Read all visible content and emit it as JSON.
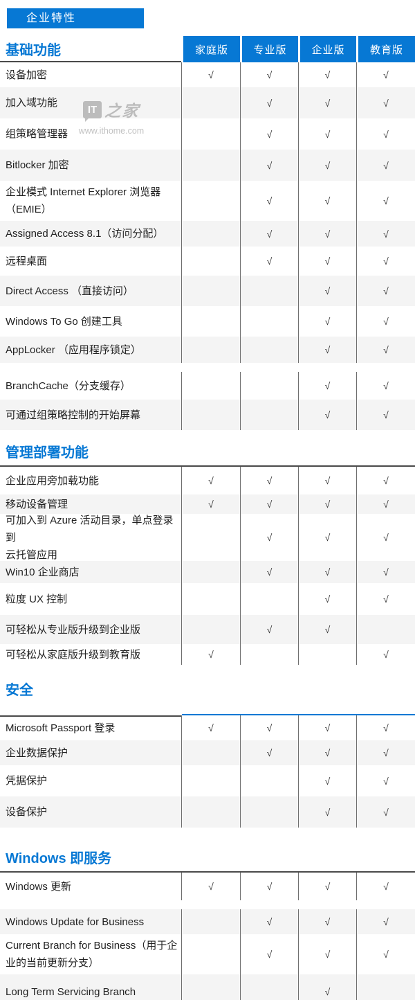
{
  "tag_button": {
    "label": "企业特性"
  },
  "editions": [
    "家庭版",
    "专业版",
    "企业版",
    "教育版"
  ],
  "checkmark_symbol": "√",
  "watermark": {
    "logo": "IT",
    "brand": "之家",
    "url": "www.ithome.com"
  },
  "colors": {
    "accent_blue": "#0778d4",
    "row_alt_bg": "#f4f4f4",
    "border_dark": "#4a4a4a",
    "grid_line": "#6e6e6e"
  },
  "sections": [
    {
      "heading": "基础功能",
      "show_edition_headers": true,
      "top_border": "headers",
      "segments": [
        {
          "rows": [
            {
              "lines": [
                "设备加密"
              ],
              "checks": [
                1,
                1,
                1,
                1
              ],
              "h": 36
            },
            {
              "lines": [
                "加入域功能"
              ],
              "checks": [
                0,
                1,
                1,
                1
              ],
              "h": 45
            },
            {
              "lines": [
                "组策略管理器"
              ],
              "checks": [
                0,
                1,
                1,
                1
              ],
              "h": 45
            },
            {
              "lines": [
                "Bitlocker 加密"
              ],
              "checks": [
                0,
                1,
                1,
                1
              ],
              "h": 45
            },
            {
              "lines": [
                "企业模式 Internet Explorer 浏览器",
                "（EMIE）"
              ],
              "checks": [
                0,
                1,
                1,
                1
              ],
              "h": 58
            },
            {
              "lines": [
                "Assigned Access 8.1（访问分配）"
              ],
              "checks": [
                0,
                1,
                1,
                1
              ],
              "h": 37
            },
            {
              "lines": [
                "远程桌面"
              ],
              "checks": [
                0,
                1,
                1,
                1
              ],
              "h": 42
            },
            {
              "lines": [
                "Direct Access （直接访问）"
              ],
              "checks": [
                0,
                0,
                1,
                1
              ],
              "h": 44
            },
            {
              "lines": [
                "Windows To Go 创建工具"
              ],
              "checks": [
                0,
                0,
                1,
                1
              ],
              "h": 44
            },
            {
              "lines": [
                "AppLocker （应用程序锁定）"
              ],
              "checks": [
                0,
                0,
                1,
                1
              ],
              "h": 38
            }
          ]
        },
        {
          "rows": [
            {
              "lines": [
                "BranchCache（分支缓存）"
              ],
              "checks": [
                0,
                0,
                1,
                1
              ],
              "h": 40
            },
            {
              "lines": [
                "可通过组策略控制的开始屏幕"
              ],
              "checks": [
                0,
                0,
                1,
                1
              ],
              "h": 44
            }
          ]
        }
      ]
    },
    {
      "heading": "管理部署功能",
      "show_edition_headers": false,
      "top_border": "dark",
      "segments": [
        {
          "rows": [
            {
              "lines": [
                "企业应用旁加载功能"
              ],
              "checks": [
                1,
                1,
                1,
                1
              ],
              "h": 40
            },
            {
              "lines": [
                "移动设备管理"
              ],
              "checks": [
                1,
                1,
                1,
                1
              ],
              "h": 28
            },
            {
              "lines": [
                "可加入到 Azure 活动目录，单点登录到",
                "云托管应用"
              ],
              "checks": [
                0,
                1,
                1,
                1
              ],
              "h": 68
            },
            {
              "lines": [
                "Win10 企业商店"
              ],
              "checks": [
                0,
                1,
                1,
                1
              ],
              "h": 32
            },
            {
              "lines": [
                "粒度 UX 控制"
              ],
              "checks": [
                0,
                0,
                1,
                1
              ],
              "h": 46
            },
            {
              "lines": [
                "可轻松从专业版升级到企业版"
              ],
              "checks": [
                0,
                1,
                1,
                0
              ],
              "h": 42
            },
            {
              "lines": [
                "可轻松从家庭版升级到教育版"
              ],
              "checks": [
                1,
                0,
                0,
                1
              ],
              "h": 30
            }
          ]
        }
      ]
    },
    {
      "heading": "安全",
      "show_edition_headers": false,
      "top_border": "split",
      "segments": [
        {
          "rows": [
            {
              "lines": [
                "Microsoft Passport 登录"
              ],
              "checks": [
                1,
                1,
                1,
                1
              ],
              "h": 36
            },
            {
              "lines": [
                "企业数据保护"
              ],
              "checks": [
                0,
                1,
                1,
                1
              ],
              "h": 36
            },
            {
              "lines": [
                "凭据保护"
              ],
              "checks": [
                0,
                0,
                1,
                1
              ],
              "h": 45
            },
            {
              "lines": [
                "设备保护"
              ],
              "checks": [
                0,
                0,
                1,
                1
              ],
              "h": 45
            }
          ]
        }
      ]
    },
    {
      "heading": "Windows 即服务",
      "show_edition_headers": false,
      "top_border": "dark",
      "segments": [
        {
          "rows": [
            {
              "lines": [
                "Windows 更新"
              ],
              "checks": [
                1,
                1,
                1,
                1
              ],
              "h": 40
            }
          ]
        },
        {
          "rows": [
            {
              "lines": [
                "Windows Update for Business"
              ],
              "checks": [
                0,
                1,
                1,
                1
              ],
              "h": 36
            },
            {
              "lines": [
                "Current Branch for Business（用于企",
                "业的当前更新分支）"
              ],
              "checks": [
                0,
                1,
                1,
                1
              ],
              "h": 58
            },
            {
              "lines": [
                "Long Term Servicing Branch"
              ],
              "checks": [
                0,
                0,
                1,
                0
              ],
              "h": 50
            }
          ]
        }
      ]
    }
  ]
}
